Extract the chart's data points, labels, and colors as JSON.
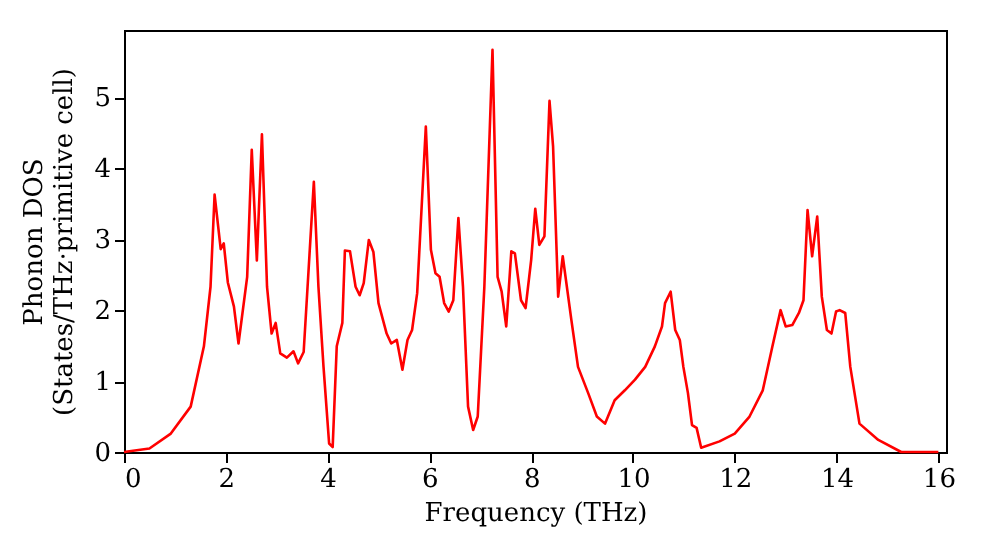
{
  "chart_data": {
    "type": "line",
    "xlabel": "Frequency (THz)",
    "ylabel": "Phonon DOS\n(States/THz·primitive cell)",
    "x": [
      0,
      0.5,
      0.92,
      1.31,
      1.57,
      1.7,
      1.78,
      1.9,
      1.96,
      2.04,
      2.16,
      2.25,
      2.42,
      2.51,
      2.61,
      2.71,
      2.81,
      2.9,
      2.98,
      3.07,
      3.2,
      3.33,
      3.42,
      3.53,
      3.73,
      3.82,
      3.92,
      4.03,
      4.1,
      4.18,
      4.29,
      4.34,
      4.44,
      4.55,
      4.63,
      4.71,
      4.81,
      4.9,
      5.0,
      5.16,
      5.25,
      5.36,
      5.47,
      5.57,
      5.66,
      5.76,
      5.93,
      6.03,
      6.12,
      6.2,
      6.29,
      6.38,
      6.47,
      6.57,
      6.66,
      6.76,
      6.86,
      6.95,
      7.08,
      7.24,
      7.34,
      7.42,
      7.51,
      7.61,
      7.68,
      7.8,
      7.89,
      8.0,
      8.08,
      8.16,
      8.26,
      8.36,
      8.43,
      8.53,
      8.62,
      8.79,
      8.92,
      9.12,
      9.29,
      9.45,
      9.64,
      9.84,
      10.04,
      10.24,
      10.43,
      10.57,
      10.63,
      10.74,
      10.83,
      10.92,
      10.99,
      11.08,
      11.16,
      11.25,
      11.34,
      11.7,
      12.0,
      12.29,
      12.55,
      12.74,
      12.9,
      13.0,
      13.13,
      13.26,
      13.35,
      13.43,
      13.52,
      13.62,
      13.71,
      13.81,
      13.9,
      13.99,
      14.06,
      14.17,
      14.27,
      14.45,
      14.82,
      15.27,
      16.0
    ],
    "series": [
      {
        "color": "#ff0000",
        "values": [
          0,
          0.05,
          0.26,
          0.64,
          1.49,
          2.33,
          3.63,
          2.86,
          2.94,
          2.39,
          2.05,
          1.53,
          2.47,
          4.26,
          2.7,
          4.48,
          2.33,
          1.67,
          1.82,
          1.39,
          1.33,
          1.42,
          1.25,
          1.41,
          3.81,
          2.33,
          1.2,
          0.12,
          0.07,
          1.49,
          1.82,
          2.84,
          2.83,
          2.33,
          2.21,
          2.38,
          2.99,
          2.82,
          2.1,
          1.67,
          1.53,
          1.58,
          1.16,
          1.58,
          1.72,
          2.24,
          4.59,
          2.85,
          2.52,
          2.47,
          2.1,
          1.98,
          2.14,
          3.3,
          2.33,
          0.64,
          0.31,
          0.5,
          2.33,
          5.67,
          2.47,
          2.26,
          1.77,
          2.83,
          2.8,
          2.14,
          2.03,
          2.71,
          3.43,
          2.92,
          3.04,
          4.95,
          4.31,
          2.19,
          2.76,
          1.86,
          1.2,
          0.83,
          0.5,
          0.4,
          0.73,
          0.87,
          1.02,
          1.2,
          1.49,
          1.77,
          2.1,
          2.26,
          1.72,
          1.58,
          1.2,
          0.83,
          0.38,
          0.34,
          0.06,
          0.15,
          0.26,
          0.5,
          0.87,
          1.49,
          2.0,
          1.77,
          1.79,
          1.96,
          2.14,
          3.41,
          2.76,
          3.32,
          2.19,
          1.72,
          1.67,
          1.98,
          2.0,
          1.96,
          1.2,
          0.4,
          0.17,
          0,
          0
        ]
      }
    ],
    "xlim": [
      0,
      16.15
    ],
    "ylim": [
      0,
      5.95
    ],
    "xticks": [
      0,
      2,
      4,
      6,
      8,
      10,
      12,
      14,
      16
    ],
    "yticks": [
      0,
      1,
      2,
      3,
      4,
      5
    ],
    "grid": false,
    "legend": false,
    "marker": "none",
    "line_style": "solid"
  }
}
